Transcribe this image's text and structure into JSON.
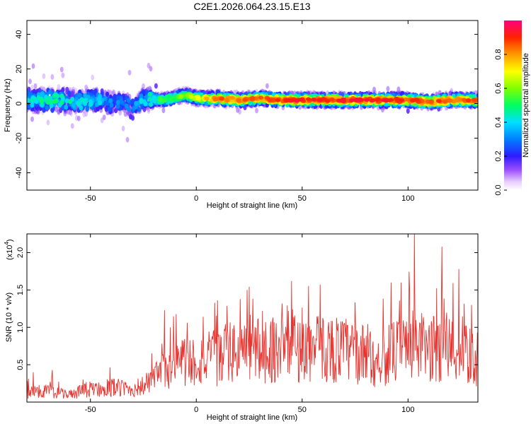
{
  "title": "C2E1.2026.064.23.15.E13",
  "chart_data": [
    {
      "type": "heatmap",
      "name": "spectrogram",
      "xlabel": "Height of straight line (km)",
      "ylabel": "Frequency (Hz)",
      "xlim": [
        -80,
        133
      ],
      "ylim": [
        -50,
        48
      ],
      "xticks": [
        -50,
        0,
        50,
        100
      ],
      "yticks": [
        40,
        20,
        0,
        -20,
        -40
      ],
      "ytick_labels": [
        "40",
        "20",
        "0",
        "-20",
        "-40"
      ],
      "xtick_labels": [
        "-50",
        "0",
        "50",
        "100"
      ],
      "colorbar": {
        "label": "Normalized spectral amplitude",
        "range": [
          0,
          1
        ],
        "ticks": [
          0.0,
          0.2,
          0.4,
          0.6,
          0.8
        ],
        "tick_labels": [
          "0.0",
          "0.2",
          "0.4",
          "0.6",
          "0.8"
        ]
      },
      "ridge": {
        "description_x": [
          -80,
          -65,
          -55,
          -45,
          -40,
          -35,
          -30,
          -25,
          -15,
          -5,
          0,
          10,
          20,
          30,
          40,
          60,
          80,
          100,
          110,
          120,
          133
        ],
        "frequency_hz": [
          2,
          2,
          1,
          2,
          0,
          1,
          -3,
          3,
          2,
          5,
          3,
          3,
          2,
          3,
          2,
          2,
          2,
          2,
          1,
          2,
          2
        ],
        "peak_amplitude": [
          0.45,
          0.5,
          0.45,
          0.4,
          0.35,
          0.3,
          0.35,
          0.45,
          0.55,
          0.6,
          0.7,
          0.85,
          0.85,
          0.85,
          0.9,
          0.92,
          0.92,
          0.9,
          0.85,
          0.88,
          0.88
        ]
      }
    },
    {
      "type": "line",
      "name": "snr",
      "xlabel": "Height of straight line (km)",
      "ylabel": "SNR (10 * v/v)",
      "y_multiplier": "(x10",
      "y_multiplier_exp": "4",
      "xlim": [
        -80,
        133
      ],
      "ylim": [
        0,
        2.25
      ],
      "xticks": [
        -50,
        0,
        50,
        100
      ],
      "xtick_labels": [
        "-50",
        "0",
        "50",
        "100"
      ],
      "yticks": [
        0.5,
        1.0,
        1.5,
        2.0
      ],
      "ytick_labels": [
        "0.5",
        "1.0",
        "1.5",
        "2.0"
      ],
      "color": "#e8332e",
      "envelope_x": [
        -80,
        -70,
        -60,
        -50,
        -40,
        -30,
        -25,
        -20,
        -15,
        -10,
        0,
        10,
        20,
        25,
        30,
        40,
        45,
        50,
        60,
        70,
        80,
        85,
        90,
        100,
        102,
        105,
        110,
        115,
        120,
        125,
        130,
        133
      ],
      "envelope_mean": [
        0.13,
        0.15,
        0.1,
        0.17,
        0.2,
        0.17,
        0.22,
        0.3,
        0.42,
        0.55,
        0.55,
        0.6,
        0.68,
        0.75,
        0.7,
        0.72,
        0.75,
        0.7,
        0.72,
        0.7,
        0.62,
        0.55,
        0.62,
        0.75,
        0.8,
        0.75,
        0.7,
        0.72,
        0.72,
        0.65,
        0.6,
        0.58
      ],
      "peaks": [
        {
          "x": -77,
          "y": 0.4
        },
        {
          "x": -68,
          "y": 0.43
        },
        {
          "x": -15,
          "y": 1.23
        },
        {
          "x": 24,
          "y": 1.5
        },
        {
          "x": 45,
          "y": 1.62
        },
        {
          "x": 92,
          "y": 1.6
        },
        {
          "x": 103,
          "y": 2.25
        },
        {
          "x": 116,
          "y": 2.08
        },
        {
          "x": 124,
          "y": 1.78
        },
        {
          "x": 130,
          "y": 1.3
        }
      ]
    }
  ]
}
